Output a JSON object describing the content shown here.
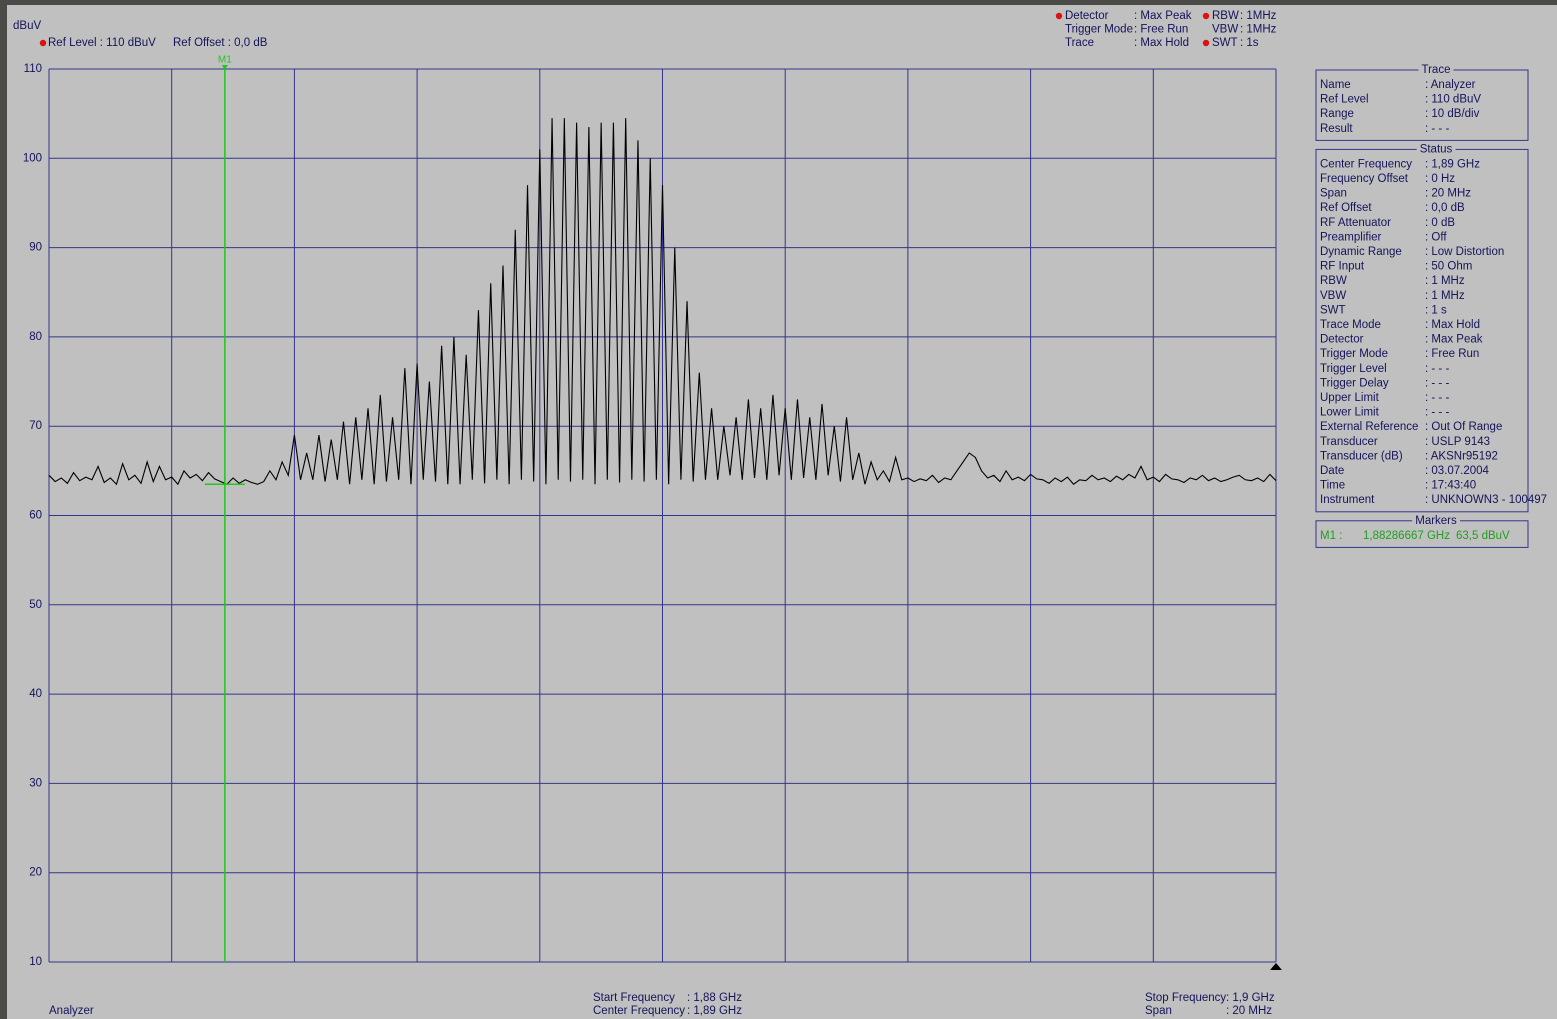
{
  "chart_data": {
    "type": "line",
    "ylabel": "dBuV",
    "ylim": [
      10,
      110
    ],
    "yticks": [
      10,
      20,
      30,
      40,
      50,
      60,
      70,
      80,
      90,
      100,
      110
    ],
    "xlim": [
      1.88,
      1.9
    ],
    "xticks": [
      1.88,
      1.882,
      1.884,
      1.886,
      1.888,
      1.89,
      1.892,
      1.894,
      1.896,
      1.898,
      1.9
    ],
    "grid": true,
    "grid_color": "#34348c",
    "x": [
      1.88,
      1.8801,
      1.8802,
      1.8803,
      1.8804,
      1.8805,
      1.8806,
      1.8807,
      1.8808,
      1.8809,
      1.881,
      1.8811,
      1.8812,
      1.8813,
      1.8814,
      1.8815,
      1.8816,
      1.8817,
      1.8818,
      1.8819,
      1.882,
      1.8821,
      1.8822,
      1.8823,
      1.8824,
      1.8825,
      1.8826,
      1.8827,
      1.8828,
      1.8829,
      1.883,
      1.8831,
      1.8832,
      1.8833,
      1.8834,
      1.8835,
      1.8836,
      1.8837,
      1.8838,
      1.8839,
      1.884,
      1.8841,
      1.8842,
      1.8843,
      1.8844,
      1.8845,
      1.8846,
      1.8847,
      1.8848,
      1.8849,
      1.885,
      1.8851,
      1.8852,
      1.8853,
      1.8854,
      1.8855,
      1.8856,
      1.8857,
      1.8858,
      1.8859,
      1.886,
      1.8861,
      1.8862,
      1.8863,
      1.8864,
      1.8865,
      1.8866,
      1.8867,
      1.8868,
      1.8869,
      1.887,
      1.8871,
      1.8872,
      1.8873,
      1.8874,
      1.8875,
      1.8876,
      1.8877,
      1.8878,
      1.8879,
      1.888,
      1.8881,
      1.8882,
      1.8883,
      1.8884,
      1.8885,
      1.8886,
      1.8887,
      1.8888,
      1.8889,
      1.889,
      1.8891,
      1.8892,
      1.8893,
      1.8894,
      1.8895,
      1.8896,
      1.8897,
      1.8898,
      1.8899,
      1.89,
      1.8901,
      1.8902,
      1.8903,
      1.8904,
      1.8905,
      1.8906,
      1.8907,
      1.8908,
      1.8909,
      1.891,
      1.8911,
      1.8912,
      1.8913,
      1.8914,
      1.8915,
      1.8916,
      1.8917,
      1.8918,
      1.8919,
      1.892,
      1.8921,
      1.8922,
      1.8923,
      1.8924,
      1.8925,
      1.8926,
      1.8927,
      1.8928,
      1.8929,
      1.893,
      1.8931,
      1.8932,
      1.8933,
      1.8934,
      1.8935,
      1.8936,
      1.8937,
      1.8938,
      1.8939,
      1.894,
      1.8941,
      1.8942,
      1.8943,
      1.8944,
      1.8945,
      1.8946,
      1.8947,
      1.8948,
      1.8949,
      1.895,
      1.8951,
      1.8952,
      1.8953,
      1.8954,
      1.8955,
      1.8956,
      1.8957,
      1.8958,
      1.8959,
      1.896,
      1.8961,
      1.8962,
      1.8963,
      1.8964,
      1.8965,
      1.8966,
      1.8967,
      1.8968,
      1.8969,
      1.897,
      1.8971,
      1.8972,
      1.8973,
      1.8974,
      1.8975,
      1.8976,
      1.8977,
      1.8978,
      1.8979,
      1.898,
      1.8981,
      1.8982,
      1.8983,
      1.8984,
      1.8985,
      1.8986,
      1.8987,
      1.8988,
      1.8989,
      1.899,
      1.8991,
      1.8992,
      1.8993,
      1.8994,
      1.8995,
      1.8996,
      1.8997,
      1.8998,
      1.8999,
      1.9
    ],
    "series": [
      {
        "name": "Analyzer",
        "color": "#000000",
        "values": [
          64.5,
          63.8,
          64.2,
          63.6,
          64.8,
          63.9,
          64.3,
          64,
          65.5,
          63.7,
          64.2,
          63.5,
          65.8,
          64,
          64.5,
          63.6,
          66,
          63.8,
          65.5,
          64,
          64.3,
          63.5,
          65,
          64.2,
          64.6,
          63.9,
          64.8,
          64.1,
          63.8,
          63.5,
          64.2,
          63.6,
          64,
          63.7,
          63.5,
          63.8,
          65,
          64,
          66,
          64.5,
          69,
          64,
          67,
          64,
          69,
          63.8,
          68.5,
          64,
          70.5,
          63.5,
          71,
          64,
          72,
          63.5,
          73.5,
          63.8,
          71,
          64,
          76.5,
          63.5,
          77,
          64,
          75,
          63.8,
          79,
          63.5,
          80,
          63.5,
          78,
          64,
          83,
          63.6,
          86,
          64,
          88,
          63.5,
          92,
          64,
          97,
          63.8,
          101,
          63.5,
          104.5,
          64,
          104.5,
          63.8,
          104,
          64,
          103.5,
          63.5,
          104,
          64,
          104,
          63.7,
          104.5,
          64,
          102,
          63.8,
          100,
          64,
          97,
          63.5,
          90,
          64,
          84,
          63.8,
          76,
          64,
          72,
          64,
          70,
          64.5,
          71,
          64,
          73,
          64.2,
          72,
          64,
          73.5,
          64.5,
          72,
          64,
          73,
          64.2,
          71,
          64,
          72.5,
          64.5,
          70,
          63.8,
          71,
          64,
          67,
          63.5,
          66,
          64,
          65,
          63.8,
          66.5,
          64,
          64.2,
          63.8,
          64.1,
          63.9,
          64.5,
          63.7,
          64.2,
          64,
          65,
          66,
          67,
          66.5,
          65,
          64.2,
          64.5,
          63.8,
          65,
          64,
          64.3,
          63.9,
          64.6,
          64.1,
          64,
          63.6,
          64.2,
          63.8,
          64.3,
          63.5,
          64,
          63.9,
          64.5,
          64,
          64.2,
          63.8,
          64.4,
          64,
          64.6,
          64.2,
          65.5,
          64,
          64.3,
          63.8,
          64.6,
          64.1,
          64,
          63.7,
          64.2,
          64,
          64.5,
          63.9,
          64.2,
          63.8,
          64,
          64.3,
          64.5,
          64,
          63.9,
          64.2,
          63.8,
          64.6,
          63.9
        ]
      }
    ],
    "markers": [
      {
        "name": "M1",
        "x": 1.88286667,
        "y": 63.5,
        "color": "#1ec81e"
      }
    ]
  },
  "header": {
    "left": [
      {
        "text": "Ref Level : 110 dBuV",
        "dot": true
      },
      {
        "text": "Ref Offset : 0,0 dB",
        "dot": false
      }
    ],
    "settings_a": [
      {
        "label": "Detector",
        "value": ": Max Peak",
        "dot": true
      },
      {
        "label": "Trigger Mode",
        "value": ": Free Run",
        "dot": false
      },
      {
        "label": "Trace",
        "value": ": Max Hold",
        "dot": false
      }
    ],
    "settings_b": [
      {
        "label": "RBW",
        "value": ": 1MHz",
        "dot": true
      },
      {
        "label": "VBW",
        "value": ": 1MHz",
        "dot": false
      },
      {
        "label": "SWT",
        "value": ": 1s",
        "dot": true
      }
    ],
    "dot_color": "#e01010"
  },
  "panel": {
    "sections": [
      {
        "title": "Trace",
        "rows": [
          [
            "Name",
            ": Analyzer"
          ],
          [
            "Ref Level",
            ": 110 dBuV"
          ],
          [
            "Range",
            ": 10 dB/div"
          ],
          [
            "Result",
            ": - - -"
          ]
        ]
      },
      {
        "title": "Status",
        "rows": [
          [
            "Center Frequency",
            ": 1,89 GHz"
          ],
          [
            "Frequency Offset",
            ": 0 Hz"
          ],
          [
            "Span",
            ": 20 MHz"
          ],
          [
            "Ref Offset",
            ": 0,0 dB"
          ],
          [
            "RF Attenuator",
            ": 0 dB"
          ],
          [
            "Preamplifier",
            ": Off"
          ],
          [
            "Dynamic Range",
            ": Low Distortion"
          ],
          [
            "RF Input",
            ": 50 Ohm"
          ],
          [
            "RBW",
            ": 1 MHz"
          ],
          [
            "VBW",
            ": 1 MHz"
          ],
          [
            "SWT",
            ": 1 s"
          ],
          [
            "Trace Mode",
            ": Max Hold"
          ],
          [
            "Detector",
            ": Max Peak"
          ],
          [
            "Trigger Mode",
            ": Free Run"
          ],
          [
            "Trigger Level",
            ": - - -"
          ],
          [
            "Trigger Delay",
            ": - - -"
          ],
          [
            "Upper Limit",
            ": - - -"
          ],
          [
            "Lower Limit",
            ": - - -"
          ],
          [
            "External Reference",
            ": Out Of Range"
          ],
          [
            "Transducer",
            ": USLP 9143"
          ],
          [
            "Transducer (dB)",
            ": AKSNr95192"
          ],
          [
            "Date",
            ": 03.07.2004"
          ],
          [
            "Time",
            ": 17:43:40"
          ],
          [
            "Instrument",
            ": UNKNOWN3 - 100497"
          ]
        ]
      },
      {
        "title": "Markers",
        "color": "#1ea01e",
        "rows": [
          [
            "M1 :",
            "1,88286667 GHz",
            "63,5 dBuV"
          ]
        ]
      }
    ]
  },
  "footer": {
    "left": [
      [
        "Start Frequency",
        ": 1,88 GHz"
      ],
      [
        "Center Frequency",
        ": 1,89 GHz"
      ]
    ],
    "right": [
      [
        "Stop Frequency",
        ": 1,9 GHz"
      ],
      [
        "Span",
        ": 20 MHz"
      ]
    ]
  }
}
